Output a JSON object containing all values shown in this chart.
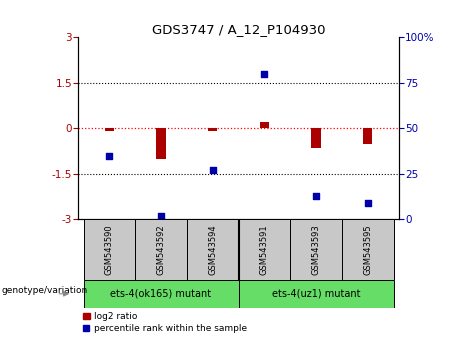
{
  "title": "GDS3747 / A_12_P104930",
  "samples": [
    "GSM543590",
    "GSM543592",
    "GSM543594",
    "GSM543591",
    "GSM543593",
    "GSM543595"
  ],
  "log2_ratio": [
    -0.08,
    -1.0,
    -0.08,
    0.2,
    -0.65,
    -0.5
  ],
  "percentile_rank": [
    35,
    2,
    27,
    80,
    13,
    9
  ],
  "group1_label": "ets-4(ok165) mutant",
  "group2_label": "ets-4(uz1) mutant",
  "group_color": "#66DD66",
  "sample_box_color": "#C8C8C8",
  "ylim_left": [
    -3,
    3
  ],
  "ylim_right": [
    0,
    100
  ],
  "yticks_left": [
    -3,
    -1.5,
    0,
    1.5,
    3
  ],
  "yticks_right": [
    0,
    25,
    50,
    75,
    100
  ],
  "hlines": [
    1.5,
    -1.5
  ],
  "bar_color": "#AA0000",
  "scatter_color": "#0000AA",
  "legend_bar_label": "log2 ratio",
  "legend_scatter_label": "percentile rank within the sample",
  "genotype_label": "genotype/variation",
  "bar_width": 0.18
}
